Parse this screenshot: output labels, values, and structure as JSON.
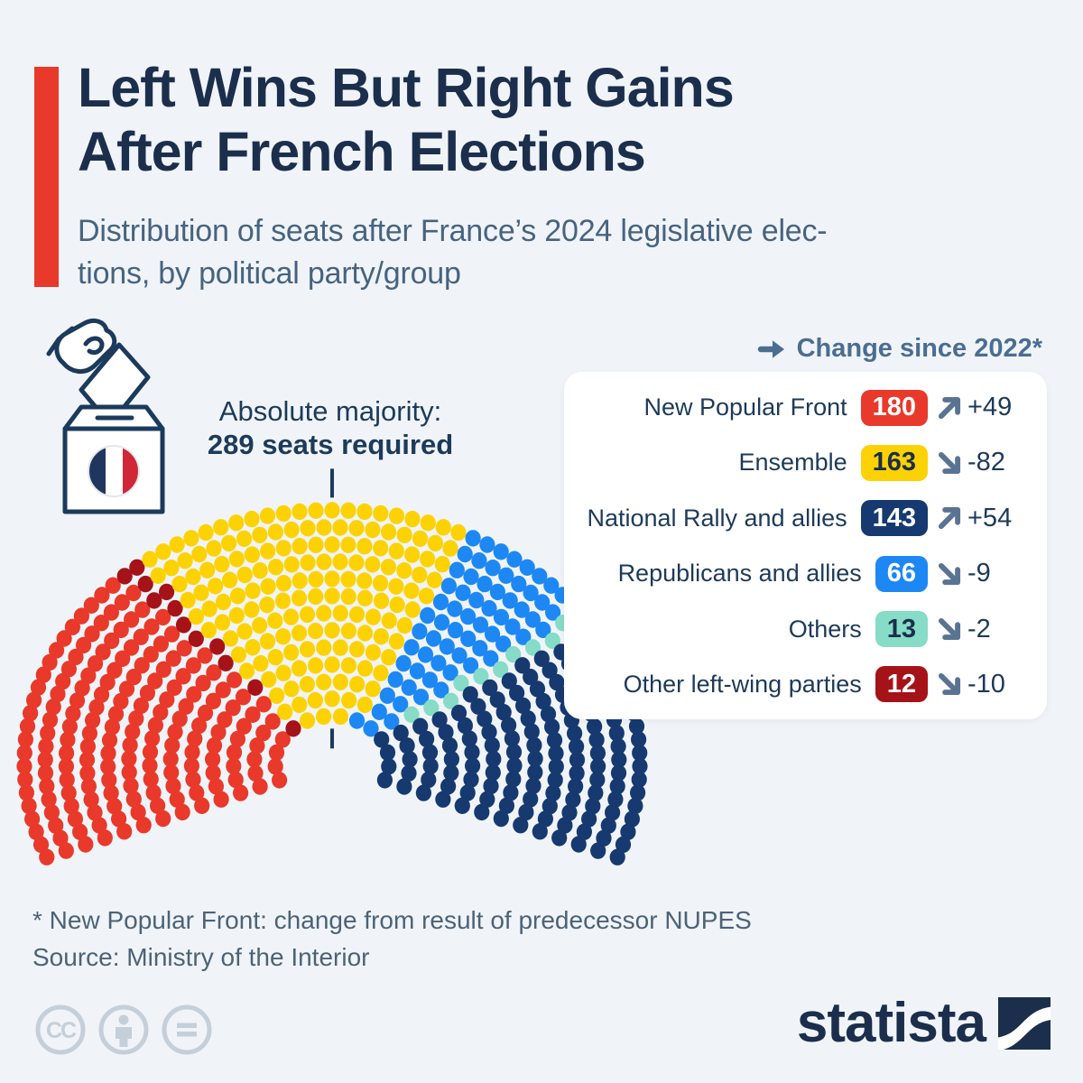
{
  "page": {
    "background_color": "#f0f4f8"
  },
  "header": {
    "title_lines": [
      "Left Wins But Right Gains",
      "After French Elections"
    ],
    "subtitle_lines": [
      "Distribution of seats after France’s 2024 legislative elec-",
      "tions, by political party/group"
    ],
    "accent_color": "#e8392b"
  },
  "majority_note": {
    "line1": "Absolute majority:",
    "line2": "289 seats required"
  },
  "legend_header": {
    "label": "Change since 2022*"
  },
  "chart_data": {
    "type": "parliament",
    "title": "Distribution of seats after France's 2024 legislative elections, by political party/group",
    "total_seats": 577,
    "majority_seats": 289,
    "series": [
      {
        "name": "New Popular Front",
        "seats": 180,
        "change": "+49",
        "trend": "up",
        "color": "#e8392b",
        "badge_style": "background:#e8392b;color:#ffffff"
      },
      {
        "name": "Ensemble",
        "seats": 163,
        "change": "-82",
        "trend": "down",
        "color": "#fdd205",
        "badge_style": "background:#fdd205;color:#1b2e4c"
      },
      {
        "name": "National Rally and allies",
        "seats": 143,
        "change": "+54",
        "trend": "up",
        "color": "#16396f",
        "badge_style": "background:#16396f;color:#ffffff"
      },
      {
        "name": "Republicans and allies",
        "seats": 66,
        "change": "-9",
        "trend": "down",
        "color": "#1d88f3",
        "badge_style": "background:#1d88f3;color:#ffffff"
      },
      {
        "name": "Others",
        "seats": 13,
        "change": "-2",
        "trend": "down",
        "color": "#86dcc6",
        "badge_style": "background:#86dcc6;color:#1b2e4c"
      },
      {
        "name": "Other left-wing parties",
        "seats": 12,
        "change": "-10",
        "trend": "down",
        "color": "#a51319",
        "badge_style": "background:#a51319;color:#ffffff"
      }
    ],
    "hemicycle_order": [
      0,
      5,
      1,
      3,
      4,
      2
    ],
    "layout_hints": {
      "rows": 13,
      "arc_degrees": 224,
      "marker_color": "#1b3a5c",
      "trend_icon_color": "#5a7392"
    }
  },
  "footer": {
    "footnote": "* New Popular Front: change from result of predecessor NUPES",
    "source": "Source: Ministry of the Interior",
    "license_icons": [
      "cc-icon",
      "attribution-person-icon",
      "no-derivatives-equals-icon"
    ],
    "brand": "statista"
  }
}
